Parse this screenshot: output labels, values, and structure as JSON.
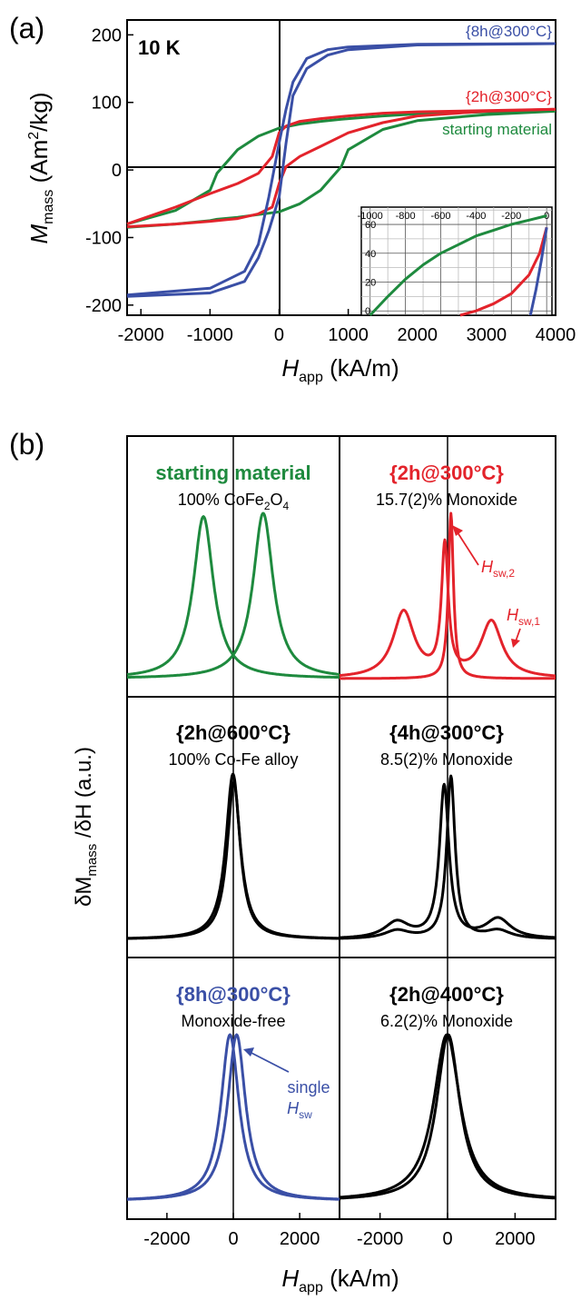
{
  "colors": {
    "green": "#1e8a3e",
    "red": "#e3232b",
    "blue": "#3a4fa6",
    "black": "#000000"
  },
  "panel_a": {
    "label": "(a)",
    "temp": "10 K",
    "ylabel_main": "M",
    "ylabel_sub": "mass",
    "ylabel_unit": " (Am",
    "ylabel_sup": "2",
    "ylabel_tail": "/kg)",
    "xlabel_main": "H",
    "xlabel_sub": "app",
    "xlabel_unit": " (kA/m)",
    "series_labels": {
      "s8h": "{8h@300°C}",
      "s2h": "{2h@300°C}",
      "start": "starting material"
    }
  },
  "panel_b": {
    "label": "(b)",
    "ylabel_delta1": "δM",
    "ylabel_sub": "mass",
    "ylabel_mid": " /δH",
    "ylabel_unit": " (a.u.)",
    "xlabel_main": "H",
    "xlabel_sub": "app",
    "xlabel_unit": " (kA/m)",
    "subplots": [
      {
        "title": "starting material",
        "subtitle_pre": "100% CoFe",
        "subtitle_s1": "2",
        "subtitle_mid": "O",
        "subtitle_s2": "4",
        "color": "green"
      },
      {
        "title": "{2h@300°C}",
        "subtitle": "15.7(2)% Monoxide",
        "color": "red",
        "ann1_main": "H",
        "ann1_sub": "sw,2",
        "ann2_main": "H",
        "ann2_sub": "sw,1"
      },
      {
        "title": "{2h@600°C}",
        "subtitle": "100% Co-Fe alloy",
        "color": "black"
      },
      {
        "title": "{4h@300°C}",
        "subtitle": "8.5(2)% Monoxide",
        "color": "black"
      },
      {
        "title": "{8h@300°C}",
        "subtitle": "Monoxide-free",
        "color": "blue",
        "ann_line1": "single",
        "ann_main": "H",
        "ann_sub": "sw"
      },
      {
        "title": "{2h@400°C}",
        "subtitle": "6.2(2)% Monoxide",
        "color": "black"
      }
    ]
  },
  "chart_data": [
    {
      "type": "line",
      "title": "",
      "xlabel": "H_app (kA/m)",
      "ylabel": "M_mass (Am2/kg)",
      "xlim": [
        -2200,
        4000
      ],
      "ylim": [
        -215,
        222
      ],
      "xticks": [
        -2000,
        -1000,
        0,
        1000,
        2000,
        3000,
        4000
      ],
      "yticks": [
        -200,
        -100,
        0,
        100,
        200
      ],
      "annotation": "10 K",
      "series": [
        {
          "name": "{8h@300°C}",
          "color": "blue",
          "x": [
            -2200,
            -1000,
            -500,
            -300,
            -150,
            0,
            100,
            200,
            400,
            700,
            1000,
            2000,
            4000
          ],
          "y_upper": [
            -185,
            -175,
            -150,
            -110,
            -40,
            40,
            90,
            130,
            165,
            178,
            182,
            186,
            187
          ],
          "y_lower": [
            -187,
            -182,
            -165,
            -130,
            -90,
            -40,
            40,
            110,
            150,
            170,
            178,
            185,
            187
          ]
        },
        {
          "name": "{2h@300°C}",
          "color": "red",
          "x": [
            -2200,
            -1500,
            -1000,
            -600,
            -300,
            -100,
            0,
            100,
            300,
            600,
            1000,
            1500,
            2000,
            3000,
            4000
          ],
          "y_upper": [
            -80,
            -55,
            -35,
            -20,
            -5,
            20,
            55,
            65,
            72,
            76,
            80,
            84,
            86,
            88,
            90
          ],
          "y_lower": [
            -84,
            -80,
            -76,
            -72,
            -65,
            -55,
            -20,
            5,
            20,
            35,
            55,
            70,
            80,
            87,
            90
          ]
        },
        {
          "name": "starting material",
          "color": "green",
          "x": [
            -2200,
            -1500,
            -1000,
            -900,
            -600,
            -300,
            0,
            300,
            600,
            900,
            1000,
            1500,
            2000,
            3000,
            4000
          ],
          "y_upper": [
            -80,
            -60,
            -30,
            -5,
            30,
            50,
            62,
            68,
            72,
            75,
            76,
            80,
            83,
            86,
            87
          ],
          "y_lower": [
            -85,
            -80,
            -75,
            -73,
            -70,
            -66,
            -62,
            -50,
            -30,
            5,
            30,
            60,
            73,
            82,
            87
          ]
        }
      ]
    },
    {
      "type": "line",
      "title": "inset",
      "xlim": [
        -1050,
        30
      ],
      "ylim": [
        -3,
        72
      ],
      "xticks": [
        -1000,
        -800,
        -600,
        -400,
        -200,
        0
      ],
      "yticks": [
        0,
        20,
        40,
        60
      ],
      "series": [
        {
          "name": "starting material",
          "color": "green",
          "x": [
            -1000,
            -900,
            -800,
            -700,
            -600,
            -500,
            -400,
            -300,
            -200,
            -100,
            0
          ],
          "y": [
            -3,
            10,
            22,
            32,
            40,
            46,
            52,
            56,
            60,
            63,
            66
          ]
        },
        {
          "name": "{2h@300°C}",
          "color": "red",
          "x": [
            -490,
            -400,
            -300,
            -200,
            -100,
            -40,
            0
          ],
          "y": [
            -3,
            0,
            5,
            12,
            25,
            40,
            58
          ]
        },
        {
          "name": "{8h@300°C}",
          "color": "blue",
          "x": [
            -92,
            -60,
            -30,
            0
          ],
          "y": [
            -3,
            15,
            35,
            58
          ]
        }
      ]
    },
    {
      "type": "line",
      "title": "starting material",
      "xlim": [
        -3200,
        3200
      ],
      "series": [
        {
          "name": "starting material",
          "color": "green",
          "peaks": [
            -900,
            900
          ],
          "widths": [
            380,
            380
          ],
          "heights": [
            1.0,
            1.0
          ],
          "baseline": 0.0
        }
      ]
    },
    {
      "type": "line",
      "title": "{2h@300°C}",
      "xlim": [
        -3200,
        3200
      ],
      "series": [
        {
          "name": "{2h@300°C}",
          "color": "red",
          "peaks": [
            -80,
            100,
            -1300,
            1300
          ],
          "heights": [
            1.0,
            1.0,
            0.4,
            0.34
          ]
        }
      ]
    },
    {
      "type": "line",
      "title": "{2h@600°C}",
      "xlim": [
        -3200,
        3200
      ],
      "series": [
        {
          "name": "{2h@600°C}",
          "color": "black",
          "peaks": [
            0
          ],
          "heights": [
            1.0
          ]
        }
      ]
    },
    {
      "type": "line",
      "title": "{4h@300°C}",
      "xlim": [
        -3200,
        3200
      ],
      "series": [
        {
          "name": "{4h@300°C}",
          "color": "black",
          "peaks": [
            -100,
            100,
            -1500,
            1500
          ],
          "heights": [
            0.95,
            0.97,
            0.13,
            0.1
          ]
        }
      ]
    },
    {
      "type": "line",
      "title": "{8h@300°C}",
      "xlim": [
        -3200,
        3200
      ],
      "xticks": [
        -2000,
        0,
        2000
      ],
      "series": [
        {
          "name": "{8h@300°C}",
          "color": "blue",
          "peaks": [
            -100,
            100
          ],
          "heights": [
            1.0,
            1.0
          ]
        }
      ]
    },
    {
      "type": "line",
      "title": "{2h@400°C}",
      "xlim": [
        -3200,
        3200
      ],
      "xticks": [
        -2000,
        0,
        2000
      ],
      "series": [
        {
          "name": "{2h@400°C}",
          "color": "black",
          "peaks": [
            -20,
            20
          ],
          "heights": [
            1.0,
            1.0
          ]
        }
      ]
    }
  ]
}
